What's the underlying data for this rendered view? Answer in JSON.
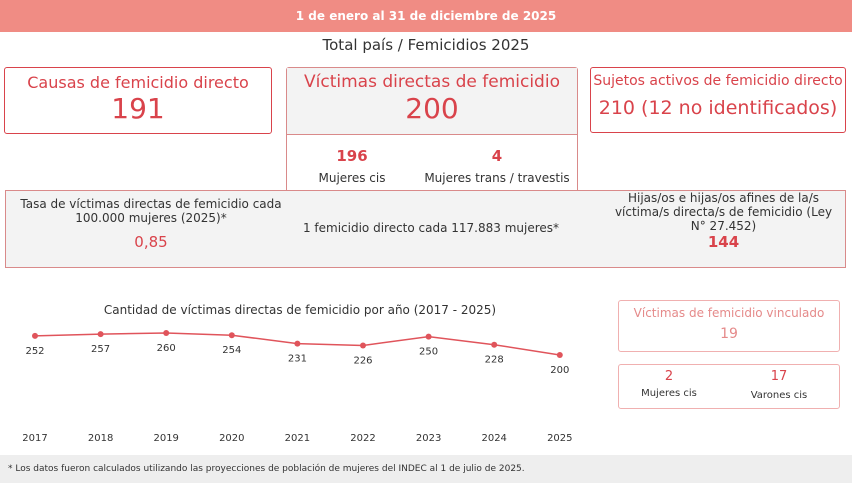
{
  "header": {
    "date_range": "1 de enero al 31 de diciembre de 2025",
    "title": "Total país / Femicidios 2025"
  },
  "causas": {
    "label": "Causas de femicidio directo",
    "value": 191
  },
  "victimas": {
    "label": "Víctimas directas de femicidio",
    "value": 200,
    "breakdown": [
      {
        "value": 196,
        "label": "Mujeres cis"
      },
      {
        "value": 4,
        "label": "Mujeres trans / travestis"
      }
    ]
  },
  "sujetos": {
    "label": "Sujetos activos de femicidio directo",
    "value": "210 (12 no identificados)"
  },
  "tasa": {
    "label": "Tasa de víctimas directas de femicidio cada 100.000 mujeres (2025)*",
    "value": "0,85"
  },
  "ratio": {
    "label": "1 femicidio directo cada 117.883 mujeres*"
  },
  "hijos": {
    "label": "Hijas/os e hijas/os afines de la/s víctima/s directa/s de femicidio (Ley N° 27.452)",
    "value": 144
  },
  "vinculado": {
    "label": "Víctimas de femicidio vinculado",
    "value": 19,
    "breakdown": [
      {
        "value": 2,
        "label": "Mujeres cis"
      },
      {
        "value": 17,
        "label": "Varones cis"
      }
    ]
  },
  "chart_data": {
    "type": "line",
    "title": "Cantidad de víctimas directas de femicidio por año (2017 - 2025)",
    "categories": [
      "2017",
      "2018",
      "2019",
      "2020",
      "2021",
      "2022",
      "2023",
      "2024",
      "2025"
    ],
    "values": [
      252,
      257,
      260,
      254,
      231,
      226,
      250,
      228,
      200
    ],
    "color": "#e0545b"
  },
  "footer": {
    "note": "* Los datos fueron calculados utilizando las proyecciones de población de mujeres del INDEC al 1 de julio de 2025."
  }
}
